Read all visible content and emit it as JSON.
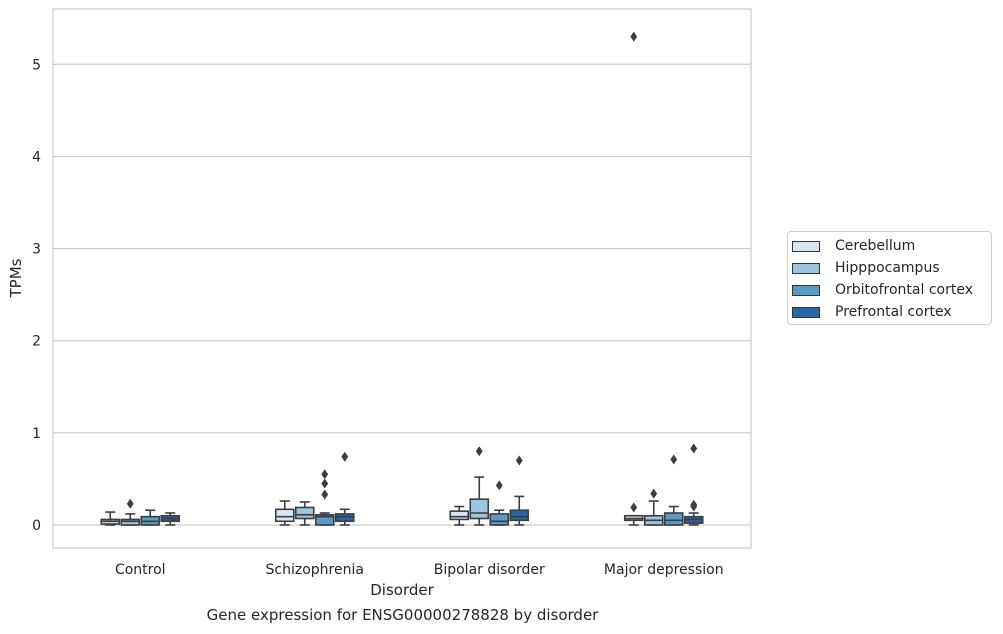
{
  "chart_data": {
    "type": "box",
    "title": "",
    "caption": "Gene expression for ENSG00000278828 by disorder",
    "xlabel": "Disorder",
    "ylabel": "TPMs",
    "ylim": [
      -0.25,
      5.6
    ],
    "yticks": [
      0,
      1,
      2,
      3,
      4,
      5
    ],
    "grid": "horizontal",
    "legend_position": "right",
    "categories": [
      "Control",
      "Schizophrenia",
      "Bipolar disorder",
      "Major depression"
    ],
    "series": [
      {
        "name": "Cerebellum",
        "color": "#d6e6f4",
        "boxes": [
          {
            "q1": 0.01,
            "median": 0.04,
            "q3": 0.06,
            "whisker_low": 0.0,
            "whisker_high": 0.14,
            "outliers": []
          },
          {
            "q1": 0.04,
            "median": 0.09,
            "q3": 0.17,
            "whisker_low": 0.0,
            "whisker_high": 0.26,
            "outliers": []
          },
          {
            "q1": 0.06,
            "median": 0.09,
            "q3": 0.15,
            "whisker_low": 0.0,
            "whisker_high": 0.2,
            "outliers": []
          },
          {
            "q1": 0.05,
            "median": 0.07,
            "q3": 0.1,
            "whisker_low": 0.0,
            "whisker_high": 0.1,
            "outliers": [
              0.19,
              5.3
            ]
          }
        ]
      },
      {
        "name": "Hipppocampus",
        "color": "#9dc5e0",
        "boxes": [
          {
            "q1": 0.0,
            "median": 0.04,
            "q3": 0.06,
            "whisker_low": 0.0,
            "whisker_high": 0.12,
            "outliers": [
              0.23
            ]
          },
          {
            "q1": 0.07,
            "median": 0.11,
            "q3": 0.19,
            "whisker_low": 0.0,
            "whisker_high": 0.25,
            "outliers": []
          },
          {
            "q1": 0.07,
            "median": 0.13,
            "q3": 0.28,
            "whisker_low": 0.0,
            "whisker_high": 0.52,
            "outliers": [
              0.8
            ]
          },
          {
            "q1": 0.0,
            "median": 0.05,
            "q3": 0.1,
            "whisker_low": 0.0,
            "whisker_high": 0.26,
            "outliers": [
              0.34
            ]
          }
        ]
      },
      {
        "name": "Orbitofrontal cortex",
        "color": "#5a9bc9",
        "boxes": [
          {
            "q1": 0.0,
            "median": 0.04,
            "q3": 0.09,
            "whisker_low": 0.0,
            "whisker_high": 0.16,
            "outliers": []
          },
          {
            "q1": 0.0,
            "median": 0.09,
            "q3": 0.11,
            "whisker_low": 0.0,
            "whisker_high": 0.13,
            "outliers": [
              0.33,
              0.45,
              0.55
            ]
          },
          {
            "q1": 0.0,
            "median": 0.04,
            "q3": 0.12,
            "whisker_low": 0.0,
            "whisker_high": 0.16,
            "outliers": [
              0.43
            ]
          },
          {
            "q1": 0.0,
            "median": 0.05,
            "q3": 0.13,
            "whisker_low": 0.0,
            "whisker_high": 0.2,
            "outliers": [
              0.71
            ]
          }
        ]
      },
      {
        "name": "Prefrontal cortex",
        "color": "#2466a9",
        "boxes": [
          {
            "q1": 0.04,
            "median": 0.07,
            "q3": 0.1,
            "whisker_low": 0.0,
            "whisker_high": 0.13,
            "outliers": []
          },
          {
            "q1": 0.04,
            "median": 0.09,
            "q3": 0.12,
            "whisker_low": 0.0,
            "whisker_high": 0.17,
            "outliers": [
              0.74
            ]
          },
          {
            "q1": 0.05,
            "median": 0.09,
            "q3": 0.16,
            "whisker_low": 0.0,
            "whisker_high": 0.31,
            "outliers": [
              0.7
            ]
          },
          {
            "q1": 0.02,
            "median": 0.06,
            "q3": 0.09,
            "whisker_low": 0.0,
            "whisker_high": 0.13,
            "outliers": [
              0.2,
              0.22,
              0.83
            ]
          }
        ]
      }
    ]
  }
}
